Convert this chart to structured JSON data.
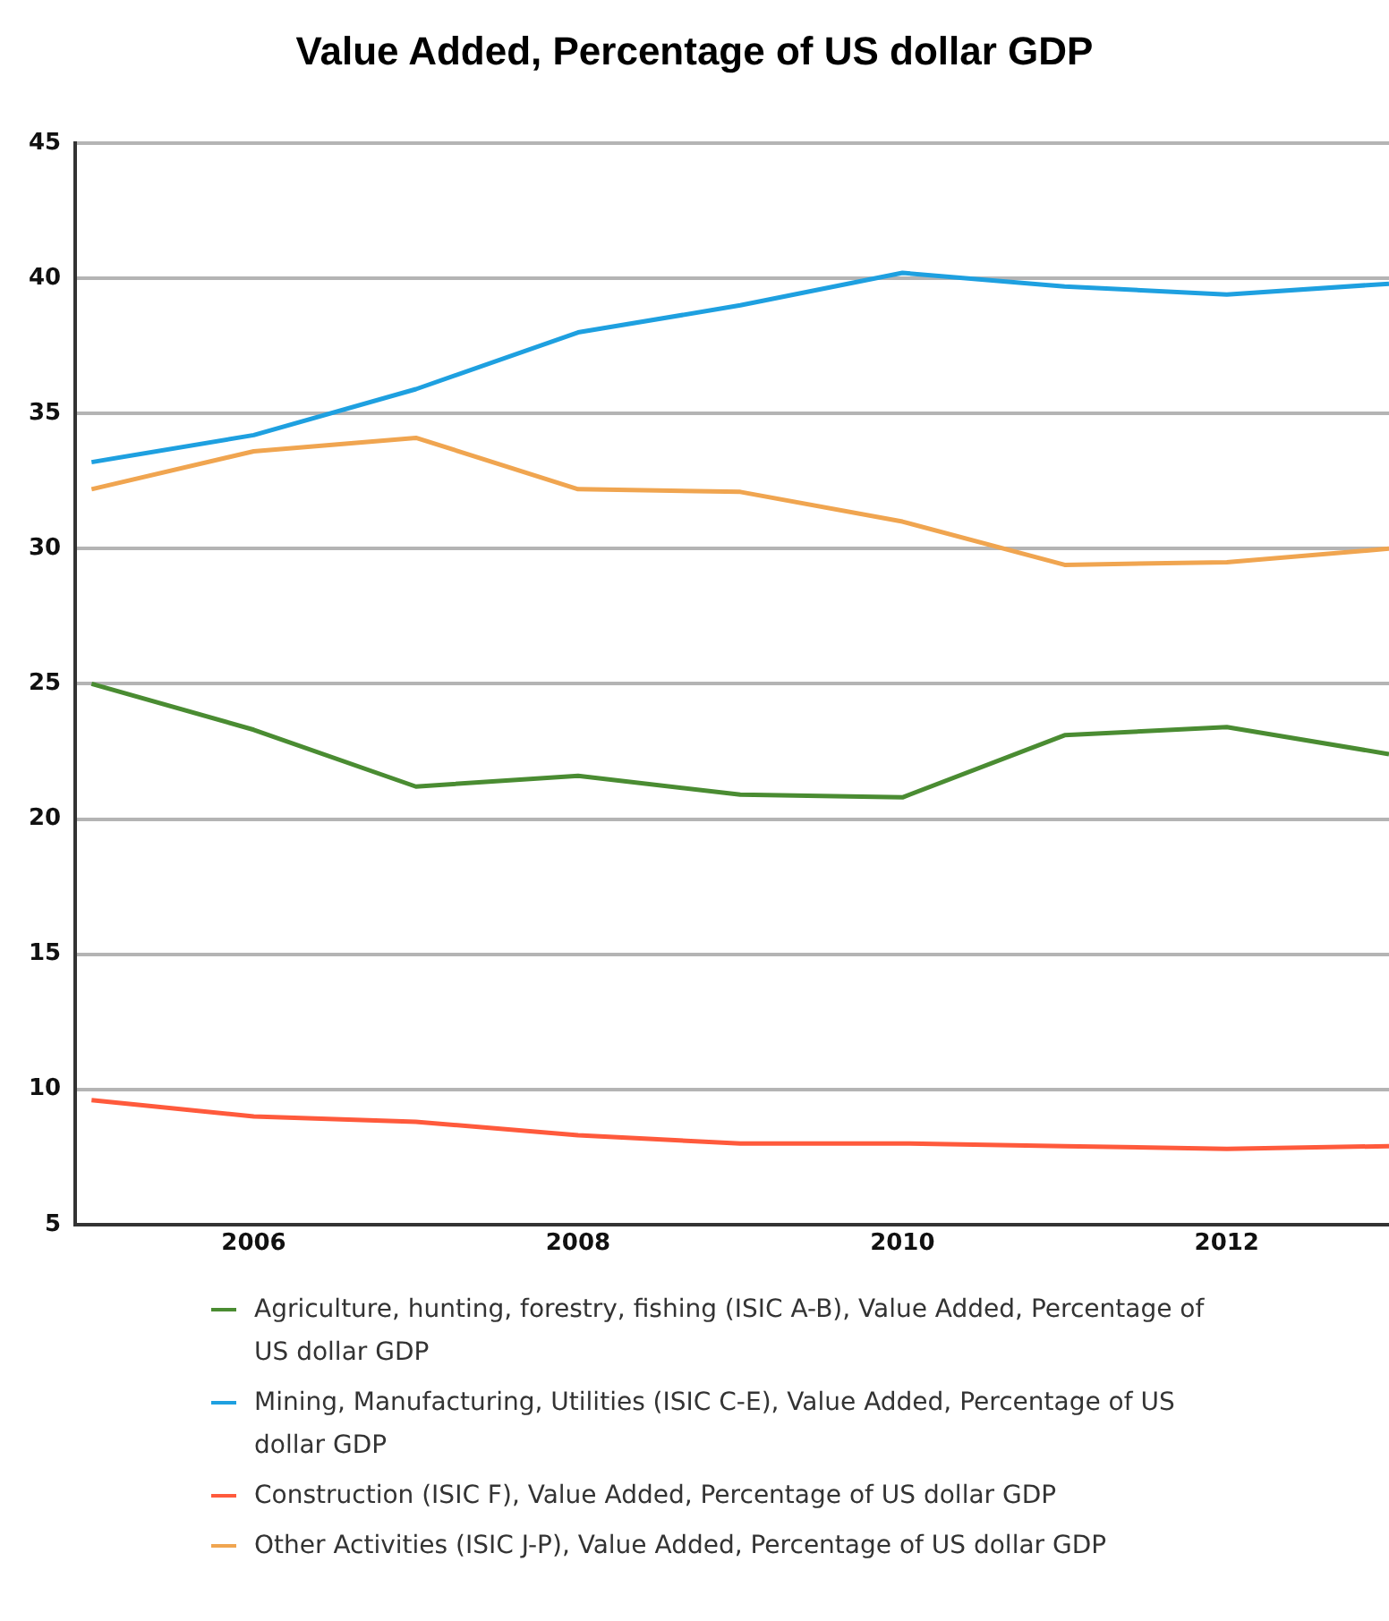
{
  "chart_data": {
    "type": "line",
    "title": "Value Added, Percentage of US dollar GDP",
    "x": [
      2005,
      2006,
      2007,
      2008,
      2009,
      2010,
      2011,
      2012,
      2013
    ],
    "xlim": [
      2004.9,
      2013
    ],
    "xticks": [
      2006,
      2008,
      2010,
      2012
    ],
    "ylim": [
      5,
      45
    ],
    "yticks": [
      5,
      10,
      15,
      20,
      25,
      30,
      35,
      40,
      45
    ],
    "grid": "y",
    "legend": "bottom",
    "marker": "none",
    "line_style": "solid",
    "series": [
      {
        "name": "Agriculture, hunting, forestry, fishing (ISIC A-B), Value Added, Percentage of US dollar GDP",
        "color": "#4a8c32",
        "values": [
          25.0,
          23.3,
          21.2,
          21.6,
          20.9,
          20.8,
          23.1,
          23.4,
          22.4
        ]
      },
      {
        "name": "Mining, Manufacturing, Utilities (ISIC C-E), Value Added, Percentage of US dollar GDP",
        "color": "#1ea0e0",
        "values": [
          33.2,
          34.2,
          35.9,
          38.0,
          39.0,
          40.2,
          39.7,
          39.4,
          39.8
        ]
      },
      {
        "name": "Construction (ISIC F), Value Added, Percentage of US dollar GDP",
        "color": "#ff5a3c",
        "values": [
          9.6,
          9.0,
          8.8,
          8.3,
          8.0,
          8.0,
          7.9,
          7.8,
          7.9
        ]
      },
      {
        "name": "Other Activities (ISIC J-P), Value Added, Percentage of US dollar GDP",
        "color": "#f0a550",
        "values": [
          32.2,
          33.6,
          34.1,
          32.2,
          32.1,
          31.0,
          29.4,
          29.5,
          30.0
        ]
      }
    ]
  }
}
